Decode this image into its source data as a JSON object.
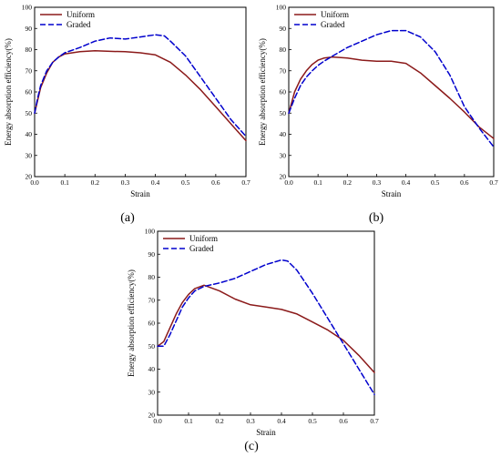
{
  "chart_data": [
    {
      "type": "line",
      "panel_label": "(a)",
      "xlabel": "Strain",
      "ylabel": "Energy absorption efficiency(%)",
      "xlim": [
        0.0,
        0.7
      ],
      "ylim": [
        20,
        100
      ],
      "xticks": [
        "0.0",
        "0.1",
        "0.2",
        "0.3",
        "0.4",
        "0.5",
        "0.6",
        "0.7"
      ],
      "yticks": [
        "20",
        "30",
        "40",
        "50",
        "60",
        "70",
        "80",
        "90",
        "100"
      ],
      "legend_position": "top-left",
      "series": [
        {
          "name": "Uniform",
          "color": "#8B1A1A",
          "dash": "solid",
          "x": [
            0.0,
            0.01,
            0.02,
            0.04,
            0.06,
            0.08,
            0.1,
            0.15,
            0.2,
            0.25,
            0.3,
            0.35,
            0.4,
            0.45,
            0.5,
            0.55,
            0.6,
            0.65,
            0.7
          ],
          "y": [
            50,
            56,
            62,
            69,
            74,
            76.5,
            78,
            79,
            79.5,
            79.2,
            79,
            78.5,
            77.5,
            74,
            68,
            61,
            53,
            45,
            37
          ]
        },
        {
          "name": "Graded",
          "color": "#0000CD",
          "dash": "dashed",
          "x": [
            0.0,
            0.01,
            0.02,
            0.04,
            0.06,
            0.08,
            0.1,
            0.15,
            0.2,
            0.25,
            0.3,
            0.35,
            0.4,
            0.43,
            0.45,
            0.5,
            0.55,
            0.6,
            0.65,
            0.7
          ],
          "y": [
            50,
            57,
            63,
            70,
            74,
            76.5,
            78.5,
            81,
            84,
            85.5,
            85,
            86,
            87,
            86.5,
            84,
            77,
            67,
            57,
            47,
            39
          ]
        }
      ]
    },
    {
      "type": "line",
      "panel_label": "(b)",
      "xlabel": "Strain",
      "ylabel": "Energy absorption efficiency(%)",
      "xlim": [
        0.0,
        0.7
      ],
      "ylim": [
        20,
        100
      ],
      "xticks": [
        "0.0",
        "0.1",
        "0.2",
        "0.3",
        "0.4",
        "0.5",
        "0.6",
        "0.7"
      ],
      "yticks": [
        "20",
        "30",
        "40",
        "50",
        "60",
        "70",
        "80",
        "90",
        "100"
      ],
      "legend_position": "top-left",
      "series": [
        {
          "name": "Uniform",
          "color": "#8B1A1A",
          "dash": "solid",
          "x": [
            0.0,
            0.02,
            0.04,
            0.06,
            0.08,
            0.1,
            0.12,
            0.15,
            0.2,
            0.25,
            0.3,
            0.35,
            0.4,
            0.45,
            0.5,
            0.55,
            0.6,
            0.65,
            0.7
          ],
          "y": [
            50,
            60,
            66,
            70,
            73,
            75,
            76,
            76.5,
            76,
            75,
            74.5,
            74.5,
            73.5,
            69,
            63,
            57,
            50.5,
            43.5,
            38
          ]
        },
        {
          "name": "Graded",
          "color": "#0000CD",
          "dash": "dashed",
          "x": [
            0.0,
            0.02,
            0.04,
            0.06,
            0.08,
            0.1,
            0.12,
            0.15,
            0.2,
            0.25,
            0.3,
            0.35,
            0.4,
            0.45,
            0.5,
            0.55,
            0.6,
            0.65,
            0.7
          ],
          "y": [
            50,
            57,
            63,
            67,
            70,
            72.5,
            74.5,
            77,
            81,
            84,
            87,
            89,
            89,
            86,
            79,
            68,
            53,
            43,
            34
          ]
        }
      ]
    },
    {
      "type": "line",
      "panel_label": "(c)",
      "xlabel": "Strain",
      "ylabel": "Energy absorption efficiency(%)",
      "xlim": [
        0.0,
        0.7
      ],
      "ylim": [
        20,
        100
      ],
      "xticks": [
        "0.0",
        "0.1",
        "0.2",
        "0.3",
        "0.4",
        "0.5",
        "0.6",
        "0.7"
      ],
      "yticks": [
        "20",
        "30",
        "40",
        "50",
        "60",
        "70",
        "80",
        "90",
        "100"
      ],
      "legend_position": "top-left",
      "series": [
        {
          "name": "Uniform",
          "color": "#8B1A1A",
          "dash": "solid",
          "x": [
            0.0,
            0.02,
            0.04,
            0.06,
            0.08,
            0.1,
            0.12,
            0.15,
            0.2,
            0.25,
            0.3,
            0.35,
            0.4,
            0.45,
            0.5,
            0.55,
            0.6,
            0.65,
            0.7
          ],
          "y": [
            50,
            52,
            58,
            64,
            69,
            72.5,
            75,
            76.5,
            74,
            70.5,
            68,
            67,
            66,
            64,
            60.5,
            57,
            52.5,
            46,
            38.5
          ]
        },
        {
          "name": "Graded",
          "color": "#0000CD",
          "dash": "dashed",
          "x": [
            0.0,
            0.02,
            0.04,
            0.06,
            0.08,
            0.1,
            0.12,
            0.15,
            0.2,
            0.25,
            0.3,
            0.35,
            0.4,
            0.42,
            0.45,
            0.5,
            0.55,
            0.6,
            0.65,
            0.7
          ],
          "y": [
            50,
            50,
            55,
            61,
            67,
            71,
            74,
            76,
            77.5,
            79.5,
            82.5,
            85.5,
            87.5,
            87,
            83,
            73,
            62,
            51,
            40,
            29
          ]
        }
      ]
    }
  ]
}
